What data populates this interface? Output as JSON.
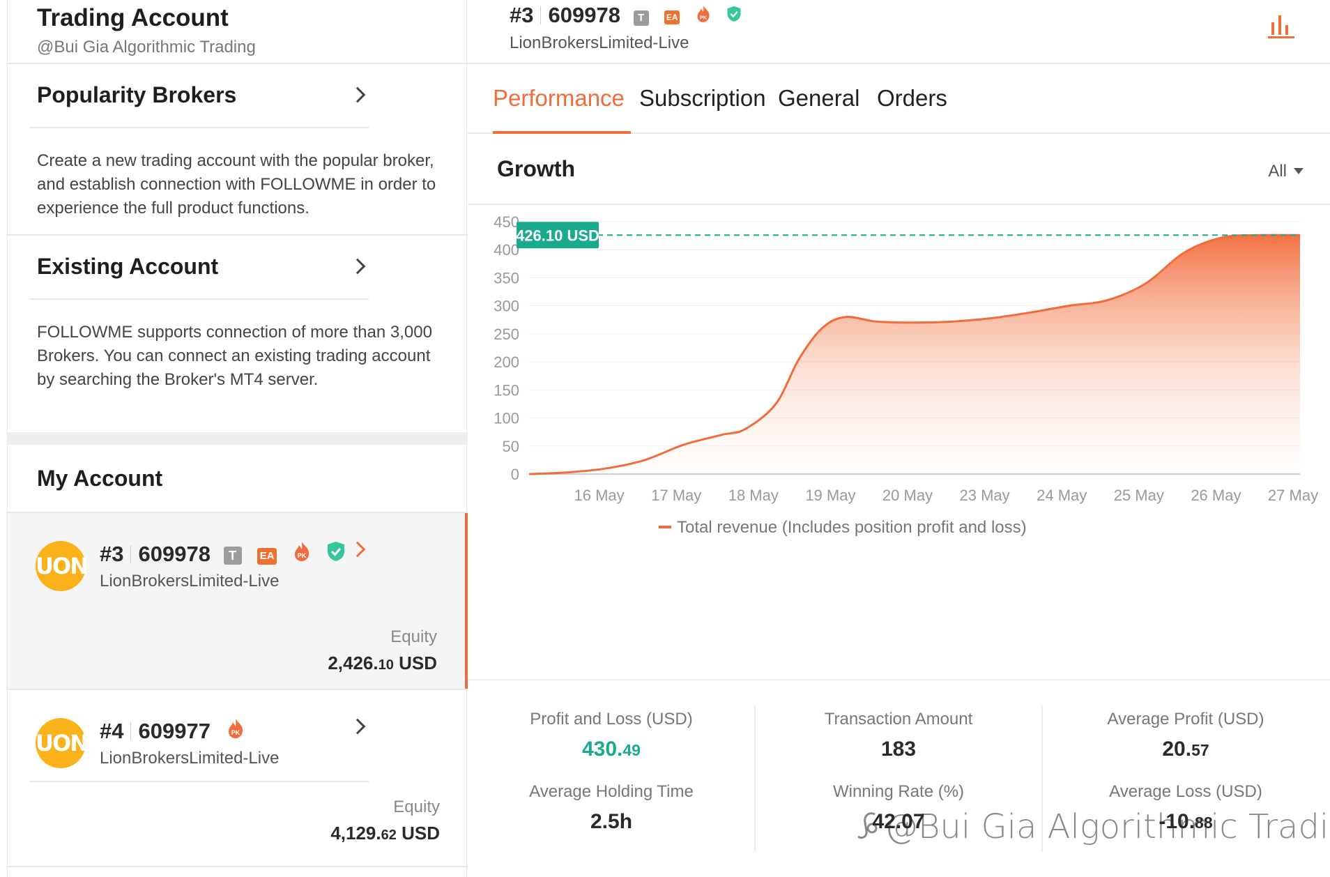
{
  "left": {
    "title": "Trading Account",
    "subtitle": "@Bui Gia Algorithmic Trading",
    "popular": {
      "title": "Popularity Brokers",
      "description": "Create a new trading account with the popular broker, and establish connection with FOLLOWME in order to experience the full product functions."
    },
    "existing": {
      "title": "Existing Account",
      "description": "FOLLOWME supports connection of more than 3,000 Brokers. You can connect an existing trading account by searching the Broker's MT4 server."
    },
    "my_account_title": "My Account",
    "accounts": [
      {
        "logo_text": "UON",
        "rank": "#3",
        "number": "609978",
        "badge_t": "T",
        "badge_ea": "EA",
        "badge_pk": "PK",
        "server": "LionBrokersLimited-Live",
        "equity_label": "Equity",
        "equity_int": "2,426.",
        "equity_dec": "10",
        "equity_currency": " USD"
      },
      {
        "logo_text": "UON",
        "rank": "#4",
        "number": "609977",
        "badge_pk": "PK",
        "server": "LionBrokersLimited-Live",
        "equity_label": "Equity",
        "equity_int": "4,129.",
        "equity_dec": "62",
        "equity_currency": " USD"
      }
    ]
  },
  "right": {
    "rank": "#3",
    "number": "609978",
    "badge_t": "T",
    "badge_ea": "EA",
    "badge_pk": "PK",
    "server": "LionBrokersLimited-Live",
    "tabs": [
      "Performance",
      "Subscription",
      "General",
      "Orders"
    ],
    "active_tab": "Performance",
    "growth_title": "Growth",
    "growth_filter": "All",
    "stats": [
      {
        "label": "Profit and Loss (USD)",
        "value_int": "430.",
        "value_dec": "49"
      },
      {
        "label": "Transaction Amount",
        "value": "183"
      },
      {
        "label": "Average Profit (USD)",
        "value_int": "20.",
        "value_dec": "57"
      },
      {
        "label": "Average Holding Time",
        "value": "2.5h"
      },
      {
        "label": "Winning Rate (%)",
        "value": "42.07"
      },
      {
        "label": "Average Loss (USD)",
        "value_int": "-10.",
        "value_dec": "88"
      }
    ],
    "watermark": "@Bui Gia Algorithmic Trading"
  },
  "colors": {
    "accent": "#f26b3a",
    "green": "#1aaa8e",
    "logo": "#fbb11a"
  },
  "chart_data": {
    "type": "area",
    "title": "Growth",
    "x_labels": [
      "16 May",
      "17 May",
      "18 May",
      "19 May",
      "20 May",
      "23 May",
      "24 May",
      "25 May",
      "26 May",
      "27 May"
    ],
    "y_ticks": [
      0,
      50,
      100,
      150,
      200,
      250,
      300,
      350,
      400,
      450
    ],
    "ylim": [
      0,
      450
    ],
    "x_range": [
      0,
      10
    ],
    "series": [
      {
        "name": "Total revenue (Includes position profit and loss)",
        "points": [
          [
            0,
            0
          ],
          [
            0.5,
            3
          ],
          [
            1,
            10
          ],
          [
            1.5,
            25
          ],
          [
            2,
            52
          ],
          [
            2.5,
            70
          ],
          [
            2.8,
            80
          ],
          [
            3.2,
            125
          ],
          [
            3.5,
            205
          ],
          [
            3.8,
            260
          ],
          [
            4.1,
            280
          ],
          [
            4.5,
            272
          ],
          [
            5,
            270
          ],
          [
            5.5,
            272
          ],
          [
            6,
            278
          ],
          [
            6.5,
            288
          ],
          [
            7,
            300
          ],
          [
            7.5,
            310
          ],
          [
            8,
            340
          ],
          [
            8.5,
            395
          ],
          [
            9,
            422
          ],
          [
            9.5,
            426
          ],
          [
            10,
            426
          ]
        ]
      }
    ],
    "marker_value": "426.10 USD",
    "legend": "Total revenue (Includes position profit and loss)"
  }
}
